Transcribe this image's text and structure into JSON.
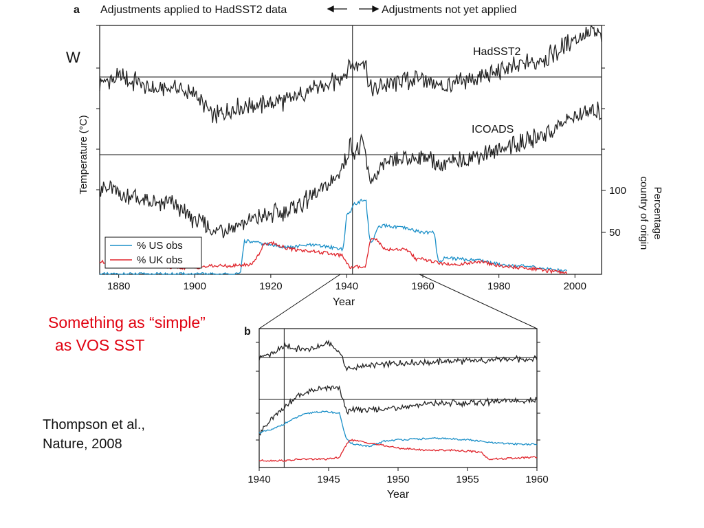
{
  "slide": {
    "note_line1": "Something as “simple”",
    "note_line2": "as  VOS SST",
    "citation_line1": "Thompson et al.,",
    "citation_line2": "Nature, 2008",
    "stray_letter": "W"
  },
  "colors": {
    "us": "#1a8fc8",
    "uk": "#e0232a",
    "temp": "#222222",
    "note": "#e0000f"
  },
  "chart_data": [
    {
      "panel": "a",
      "type": "line",
      "panel_label": "a",
      "header_left": "Adjustments applied to HadSST2 data",
      "header_right": "Adjustments not yet applied",
      "xlabel": "Year",
      "ylabel_left": "Temperature (°C)",
      "ylabel_right_line1": "Percentage",
      "ylabel_right_line2": "country of origin",
      "xlim": [
        1875,
        2007
      ],
      "xticks": [
        1880,
        1900,
        1920,
        1940,
        1960,
        1980,
        2000
      ],
      "right_ticks": [
        50,
        100
      ],
      "right_range": [
        0,
        180
      ],
      "divider_year": 1941.5,
      "grid": false,
      "legend_position": "bottom-left",
      "series": [
        {
          "name": "HadSST2",
          "kind": "temperature",
          "x": [
            1875,
            1880,
            1885,
            1890,
            1895,
            1900,
            1905,
            1910,
            1915,
            1920,
            1925,
            1930,
            1935,
            1940,
            1941,
            1942,
            1943,
            1944,
            1945,
            1946,
            1947,
            1950,
            1955,
            1960,
            1965,
            1970,
            1975,
            1980,
            1985,
            1990,
            1995,
            2000,
            2005,
            2007
          ],
          "y": [
            -0.05,
            0.0,
            -0.05,
            -0.12,
            -0.1,
            -0.15,
            -0.35,
            -0.3,
            -0.25,
            -0.25,
            -0.2,
            -0.12,
            -0.08,
            0.05,
            0.12,
            0.08,
            0.1,
            0.15,
            0.1,
            -0.12,
            -0.12,
            -0.08,
            -0.05,
            0.0,
            -0.1,
            -0.05,
            0.0,
            0.05,
            0.1,
            0.15,
            0.22,
            0.35,
            0.4,
            0.38
          ]
        },
        {
          "name": "ICOADS",
          "kind": "temperature",
          "x": [
            1875,
            1880,
            1885,
            1890,
            1895,
            1900,
            1905,
            1910,
            1915,
            1920,
            1925,
            1930,
            1935,
            1940,
            1941,
            1942,
            1943,
            1944,
            1945,
            1946,
            1947,
            1950,
            1955,
            1960,
            1965,
            1970,
            1975,
            1980,
            1985,
            1990,
            1995,
            2000,
            2005,
            2007
          ],
          "y": [
            -0.3,
            -0.35,
            -0.4,
            -0.45,
            -0.45,
            -0.6,
            -0.7,
            -0.65,
            -0.6,
            -0.55,
            -0.5,
            -0.4,
            -0.3,
            -0.05,
            0.1,
            0.0,
            0.05,
            0.1,
            0.0,
            -0.25,
            -0.2,
            -0.1,
            -0.05,
            0.0,
            -0.1,
            -0.05,
            0.0,
            0.05,
            0.1,
            0.15,
            0.25,
            0.35,
            0.4,
            0.38
          ]
        },
        {
          "name": "% US obs",
          "kind": "percent",
          "x": [
            1875,
            1912,
            1913,
            1920,
            1925,
            1930,
            1935,
            1939,
            1940,
            1941,
            1942,
            1943,
            1944,
            1945,
            1946,
            1947,
            1948,
            1950,
            1955,
            1960,
            1963,
            1964,
            1966,
            1970,
            1975,
            1980,
            1985,
            1990,
            1995,
            1998
          ],
          "y": [
            0,
            0,
            40,
            35,
            32,
            35,
            33,
            30,
            70,
            75,
            85,
            85,
            88,
            90,
            40,
            40,
            55,
            58,
            55,
            50,
            50,
            15,
            20,
            18,
            17,
            12,
            10,
            8,
            5,
            5
          ]
        },
        {
          "name": "% UK obs",
          "kind": "percent",
          "x": [
            1875,
            1880,
            1885,
            1890,
            1895,
            1900,
            1905,
            1910,
            1915,
            1917,
            1918,
            1920,
            1925,
            1930,
            1935,
            1939,
            1940,
            1941,
            1945,
            1946,
            1947,
            1950,
            1955,
            1957,
            1958,
            1960,
            1963,
            1964,
            1966,
            1970,
            1975,
            1980,
            1985,
            1990,
            1995,
            1998
          ],
          "y": [
            15,
            12,
            10,
            10,
            8,
            8,
            10,
            10,
            12,
            25,
            35,
            38,
            30,
            28,
            25,
            22,
            12,
            8,
            10,
            38,
            45,
            30,
            30,
            25,
            18,
            18,
            15,
            14,
            12,
            12,
            15,
            10,
            8,
            6,
            3,
            2
          ]
        }
      ],
      "labels": [
        "HadSST2",
        "ICOADS"
      ]
    },
    {
      "panel": "b",
      "type": "line",
      "panel_label": "b",
      "xlabel": "Year",
      "xlim": [
        1940,
        1960
      ],
      "xticks": [
        1940,
        1945,
        1950,
        1955,
        1960
      ],
      "divider_year": 1941.8,
      "series": [
        {
          "name": "HadSST2",
          "kind": "temperature",
          "x": [
            1940,
            1941,
            1942,
            1943,
            1944,
            1945,
            1945.8,
            1946.3,
            1947,
            1948,
            1950,
            1952,
            1954,
            1956,
            1958,
            1960
          ],
          "y": [
            0.0,
            0.05,
            0.12,
            0.08,
            0.1,
            0.15,
            0.05,
            -0.12,
            -0.1,
            -0.08,
            -0.06,
            -0.05,
            -0.04,
            -0.03,
            -0.02,
            -0.01
          ]
        },
        {
          "name": "ICOADS",
          "kind": "temperature",
          "x": [
            1940,
            1941,
            1942,
            1943,
            1944,
            1945,
            1945.8,
            1946.3,
            1947,
            1948,
            1950,
            1952,
            1954,
            1956,
            1958,
            1960
          ],
          "y": [
            -0.35,
            -0.2,
            -0.05,
            0.05,
            0.1,
            0.12,
            0.1,
            -0.12,
            -0.1,
            -0.12,
            -0.08,
            -0.05,
            -0.04,
            -0.03,
            -0.02,
            -0.01
          ]
        },
        {
          "name": "% US obs",
          "kind": "percent",
          "x": [
            1940,
            1941,
            1942,
            1943,
            1944,
            1945,
            1945.8,
            1946.2,
            1946.5,
            1948,
            1949,
            1950,
            1953,
            1955,
            1957,
            1960
          ],
          "y": [
            50,
            55,
            65,
            75,
            80,
            80,
            78,
            45,
            35,
            30,
            38,
            40,
            42,
            40,
            35,
            33
          ]
        },
        {
          "name": "% UK obs",
          "kind": "percent",
          "x": [
            1940,
            1941,
            1942,
            1943,
            1944,
            1945,
            1945.8,
            1946.2,
            1946.5,
            1948,
            1950,
            1952,
            1954,
            1956,
            1956.5,
            1958,
            1960
          ],
          "y": [
            10,
            10,
            10,
            12,
            12,
            12,
            15,
            30,
            40,
            35,
            28,
            25,
            25,
            22,
            12,
            13,
            15
          ]
        }
      ]
    }
  ]
}
